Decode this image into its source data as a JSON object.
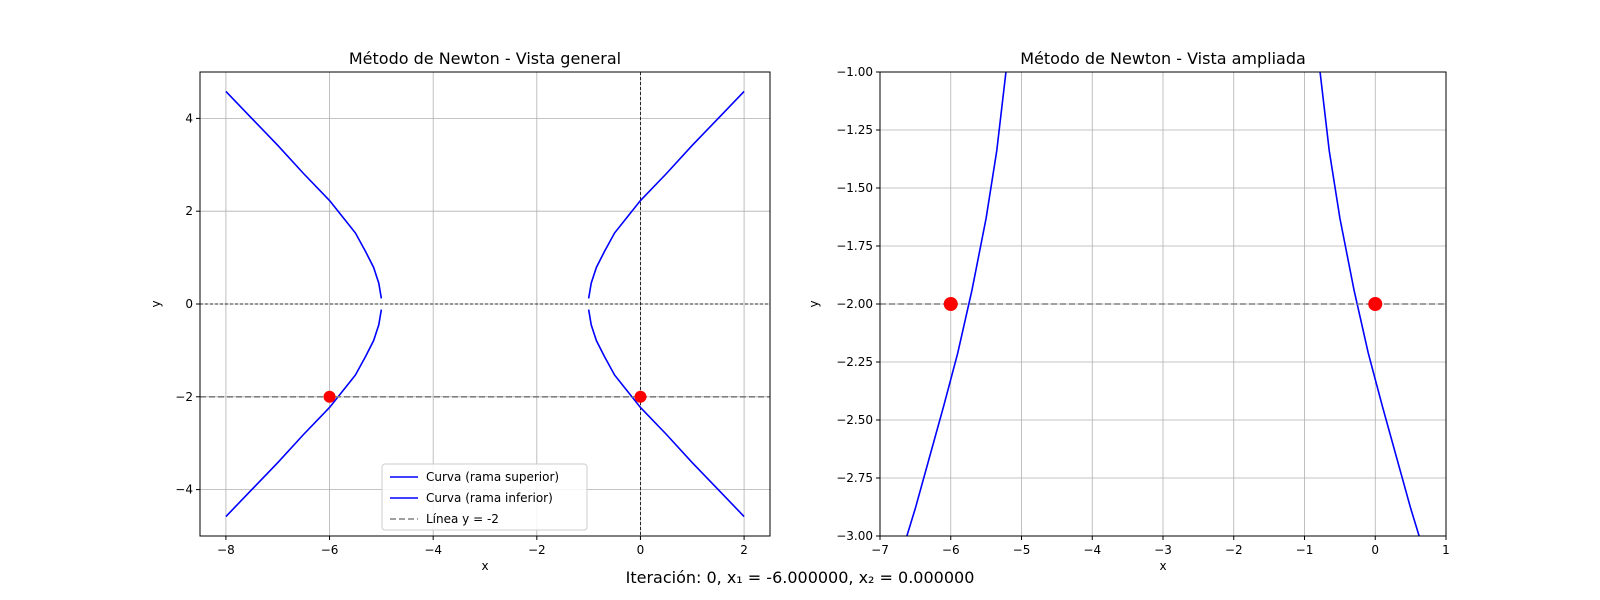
{
  "figure": {
    "suptitle": "Iteración: 0, x₁ = -6.000000, x₂ = 0.000000"
  },
  "chart_data": [
    {
      "type": "line",
      "title": "Método de Newton - Vista general",
      "xlabel": "x",
      "ylabel": "y",
      "xlim": [
        -8.5,
        2.5
      ],
      "ylim": [
        -5,
        5
      ],
      "xticks": [
        -8,
        -6,
        -4,
        -2,
        0,
        2
      ],
      "yticks": [
        -4,
        -2,
        0,
        2,
        4
      ],
      "tick_labels_x": [
        "−8",
        "−6",
        "−4",
        "−2",
        "0",
        "2"
      ],
      "tick_labels_y": [
        "−4",
        "−2",
        "0",
        "2",
        "4"
      ],
      "grid": true,
      "axes_lines": {
        "x0": true,
        "y0": true
      },
      "legend": {
        "placement": "lower-center",
        "entries": [
          "Curva (rama superior)",
          "Curva (rama inferior)",
          "Línea y = -2"
        ]
      },
      "series": [
        {
          "name": "Curva (rama superior)",
          "color": "#0000ff",
          "x": [
            -8,
            -7.5,
            -7,
            -6.5,
            -6,
            -5.75,
            -5.5,
            -5.3,
            -5.15,
            -5.05,
            -5.0,
            null,
            -1.0,
            -0.95,
            -0.85,
            -0.7,
            -0.5,
            -0.25,
            0,
            0.5,
            1,
            1.5,
            2
          ],
          "y": [
            4.58,
            4.0,
            3.42,
            2.81,
            2.23,
            1.88,
            1.53,
            1.12,
            0.79,
            0.45,
            0.12,
            null,
            0.12,
            0.45,
            0.79,
            1.12,
            1.53,
            1.88,
            2.23,
            2.81,
            3.42,
            4.0,
            4.58
          ]
        },
        {
          "name": "Curva (rama inferior)",
          "color": "#0000ff",
          "x": [
            -5.0,
            -5.05,
            -5.15,
            -5.3,
            -5.5,
            -5.75,
            -6,
            -6.5,
            -7,
            -7.5,
            -8,
            null,
            2,
            1.5,
            1,
            0.5,
            0,
            -0.25,
            -0.5,
            -0.7,
            -0.85,
            -0.95,
            -1.0
          ],
          "y": [
            -0.12,
            -0.45,
            -0.79,
            -1.12,
            -1.53,
            -1.88,
            -2.23,
            -2.81,
            -3.42,
            -4.0,
            -4.58,
            null,
            -4.58,
            -4.0,
            -3.42,
            -2.81,
            -2.23,
            -1.88,
            -1.53,
            -1.12,
            -0.79,
            -0.45,
            -0.12
          ]
        },
        {
          "name": "Línea y = -2",
          "color": "#808080",
          "style": "dashed",
          "x": [
            -8.5,
            2.5
          ],
          "y": [
            -2,
            -2
          ]
        }
      ],
      "points": [
        {
          "x": -6,
          "y": -2,
          "color": "#ff0000"
        },
        {
          "x": 0,
          "y": -2,
          "color": "#ff0000"
        }
      ]
    },
    {
      "type": "line",
      "title": "Método de Newton - Vista ampliada",
      "xlabel": "x",
      "ylabel": "y",
      "xlim": [
        -7,
        1
      ],
      "ylim": [
        -3,
        -1
      ],
      "xticks": [
        -7,
        -6,
        -5,
        -4,
        -3,
        -2,
        -1,
        0,
        1
      ],
      "yticks": [
        -3,
        -2.75,
        -2.5,
        -2.25,
        -2,
        -1.75,
        -1.5,
        -1.25,
        -1
      ],
      "tick_labels_x": [
        "−7",
        "−6",
        "−5",
        "−4",
        "−3",
        "−2",
        "−1",
        "0",
        "1"
      ],
      "tick_labels_y": [
        "−3.00",
        "−2.75",
        "−2.50",
        "−2.25",
        "−2.00",
        "−1.75",
        "−1.50",
        "−1.25",
        "−1.00"
      ],
      "grid": true,
      "series": [
        {
          "name": "Curva (rama inferior)",
          "color": "#0000ff",
          "x": [
            -6.62,
            -6.5,
            -6.3,
            -6.1,
            -5.9,
            -5.7,
            -5.5,
            -5.35,
            -5.22,
            null,
            -0.78,
            -0.65,
            -0.5,
            -0.3,
            -0.1,
            0.1,
            0.3,
            0.5,
            0.62
          ],
          "y": [
            -3.0,
            -2.88,
            -2.66,
            -2.44,
            -2.21,
            -1.94,
            -1.63,
            -1.34,
            -1.0,
            null,
            -1.0,
            -1.34,
            -1.63,
            -1.94,
            -2.21,
            -2.44,
            -2.66,
            -2.88,
            -3.0
          ]
        },
        {
          "name": "Línea y = -2",
          "color": "#808080",
          "style": "dashed",
          "x": [
            -7,
            1
          ],
          "y": [
            -2,
            -2
          ]
        }
      ],
      "points": [
        {
          "x": -6,
          "y": -2,
          "color": "#ff0000"
        },
        {
          "x": 0,
          "y": -2,
          "color": "#ff0000"
        }
      ]
    }
  ]
}
